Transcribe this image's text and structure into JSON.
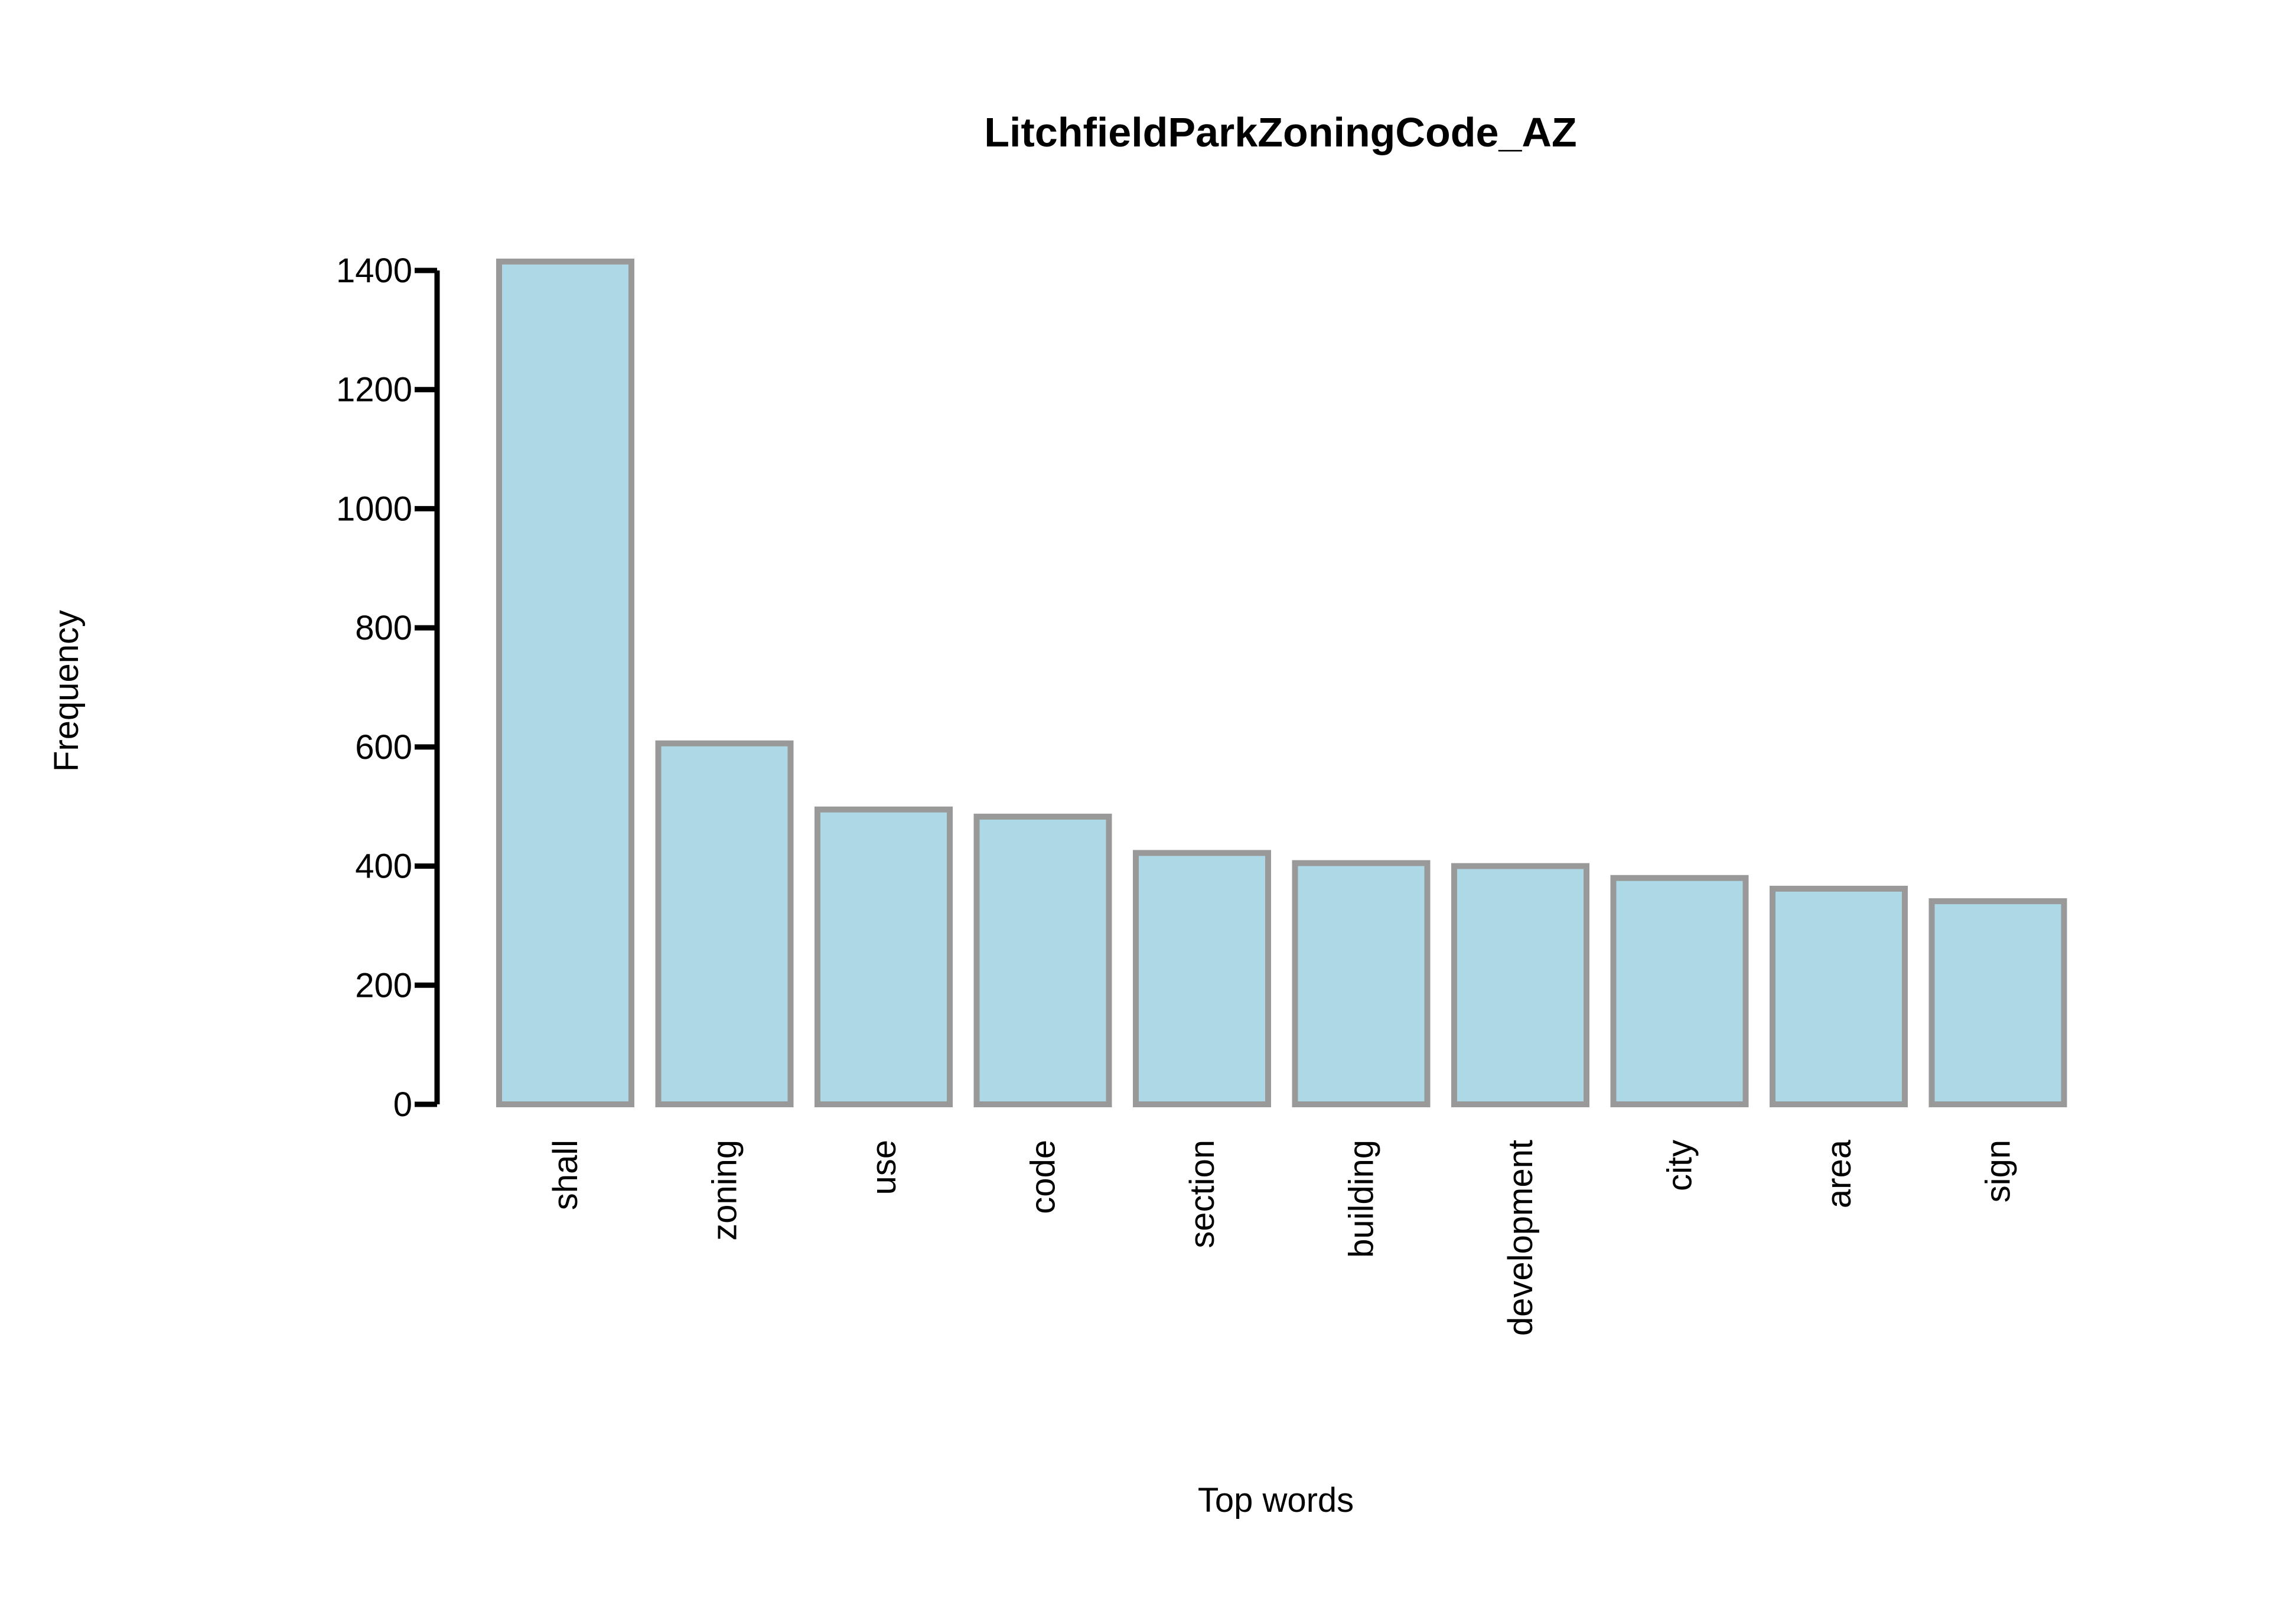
{
  "chart_data": {
    "type": "bar",
    "title": "LitchfieldParkZoningCode_AZ",
    "xlabel": "Top words",
    "ylabel": "Frequency",
    "categories": [
      "shall",
      "zoning",
      "use",
      "code",
      "section",
      "building",
      "development",
      "city",
      "area",
      "sign"
    ],
    "values": [
      1415,
      606,
      495,
      483,
      422,
      405,
      400,
      380,
      362,
      341
    ],
    "ylim": [
      0,
      1400
    ],
    "yticks": [
      0,
      200,
      400,
      600,
      800,
      1000,
      1200,
      1400
    ],
    "ytick_labels": [
      "0",
      "200",
      "400",
      "600",
      "800",
      "1000",
      "1200",
      "1400"
    ],
    "grid": false,
    "legend": "none",
    "colors": {
      "bar_fill": "#add8e6",
      "bar_stroke": "#999999",
      "axis": "#000000"
    }
  }
}
